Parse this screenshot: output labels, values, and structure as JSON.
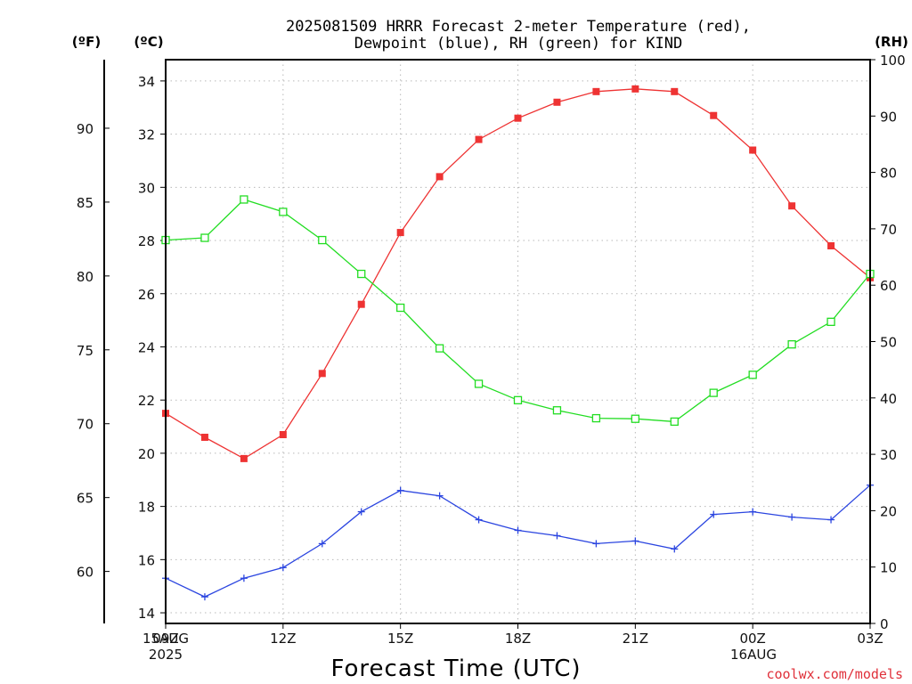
{
  "header": {
    "title_line1": "2025081509 HRRR Forecast 2-meter Temperature (red),",
    "title_line2": "Dewpoint (blue), RH (green) for KIND",
    "unit_f": "(ºF)",
    "unit_c": "(ºC)",
    "unit_rh": "(RH)"
  },
  "footer": {
    "xlabel": "Forecast Time (UTC)",
    "credit": "coolwx.com/models",
    "date_left_day": "15AUG",
    "date_left_year": "2025",
    "date_right_day": "16AUG"
  },
  "chart_data": {
    "type": "line",
    "title": "2025081509 HRRR Forecast 2-meter Temperature (red), Dewpoint (blue), RH (green) for KIND",
    "xlabel": "Forecast Time (UTC)",
    "x": [
      "09Z",
      "10Z",
      "11Z",
      "12Z",
      "13Z",
      "14Z",
      "15Z",
      "16Z",
      "17Z",
      "18Z",
      "19Z",
      "20Z",
      "21Z",
      "22Z",
      "23Z",
      "00Z",
      "01Z",
      "02Z",
      "03Z"
    ],
    "x_tick_labels": [
      "09Z",
      "12Z",
      "15Z",
      "18Z",
      "21Z",
      "00Z",
      "03Z"
    ],
    "x_tick_index": [
      0,
      3,
      6,
      9,
      12,
      15,
      18
    ],
    "y_celsius": {
      "range": [
        13.6,
        34.8
      ],
      "ticks": [
        14,
        16,
        18,
        20,
        22,
        24,
        26,
        28,
        30,
        32,
        34
      ]
    },
    "y_fahrenheit": {
      "ticks": [
        60,
        65,
        70,
        75,
        80,
        85,
        90
      ]
    },
    "y_rh": {
      "range": [
        0,
        100
      ],
      "ticks": [
        0,
        10,
        20,
        30,
        40,
        50,
        60,
        70,
        80,
        90,
        100
      ]
    },
    "grid": true,
    "series": [
      {
        "name": "2-meter Temperature",
        "axis": "celsius",
        "color": "#ee3333",
        "marker": "filled-square",
        "values": [
          21.5,
          20.6,
          19.8,
          20.7,
          23.0,
          25.6,
          28.3,
          30.4,
          31.8,
          32.6,
          33.2,
          33.6,
          33.7,
          33.6,
          32.7,
          31.4,
          29.3,
          27.8,
          26.6
        ]
      },
      {
        "name": "Dewpoint",
        "axis": "celsius",
        "color": "#2b45e0",
        "marker": "plus",
        "values": [
          15.3,
          14.6,
          15.3,
          15.7,
          16.6,
          17.8,
          18.6,
          18.4,
          17.5,
          17.1,
          16.9,
          16.6,
          16.7,
          16.4,
          17.7,
          17.8,
          17.6,
          17.5,
          18.8
        ]
      },
      {
        "name": "RH",
        "axis": "rh",
        "color": "#22dd22",
        "marker": "open-square",
        "values": [
          68,
          68.4,
          75.2,
          73,
          68,
          62,
          56,
          48.8,
          42.5,
          39.6,
          37.8,
          36.4,
          36.3,
          35.8,
          40.9,
          44.1,
          49.5,
          53.5,
          62
        ]
      }
    ]
  }
}
